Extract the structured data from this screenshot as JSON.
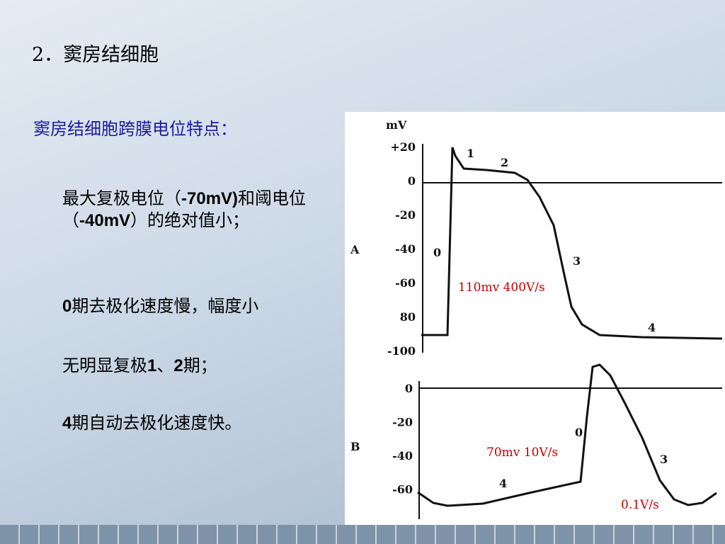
{
  "header": {
    "title": "2．窦房结细胞",
    "subtitle": "窦房结细胞跨膜电位特点："
  },
  "bullets": [
    [
      "最大复极电位（",
      "-70mV)",
      "和阈电位（",
      "-40mV",
      "）的绝对值小；"
    ],
    [
      "0",
      "期去极化速度慢，幅度小"
    ],
    [
      "无明显复极",
      "1",
      "、",
      "2",
      "期；"
    ],
    [
      "4",
      "期自动去极化速度快。"
    ]
  ],
  "figure": {
    "unit": "mV",
    "panel_a": {
      "label": "A",
      "ticks": [
        "+20",
        "0",
        "-20",
        "-40",
        "-60",
        "80",
        "-100"
      ],
      "phases": [
        "1",
        "2",
        "0",
        "3",
        "4"
      ],
      "note": "110mv 400V/s"
    },
    "panel_b": {
      "label": "B",
      "ticks": [
        "0",
        "-20",
        "-40",
        "-60"
      ],
      "phases": [
        "0",
        "3",
        "4"
      ],
      "notes": [
        "70mv 10V/s",
        "0.1V/s"
      ]
    }
  }
}
